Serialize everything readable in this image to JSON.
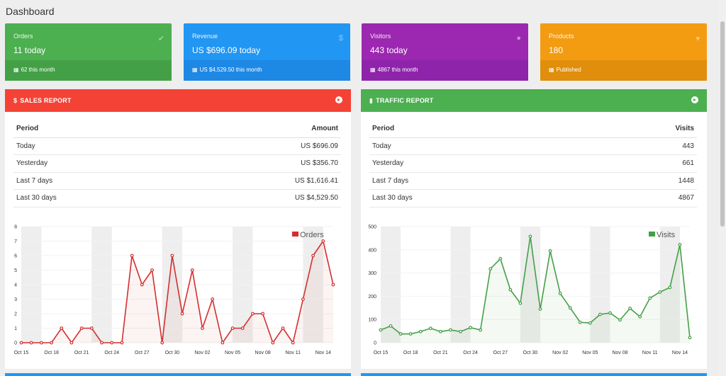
{
  "page": {
    "title": "Dashboard"
  },
  "cards": [
    {
      "key": "orders",
      "label": "Orders",
      "value": "11 today",
      "footer": "62 this month",
      "icon": "check-icon",
      "color": "#4caf50"
    },
    {
      "key": "revenue",
      "label": "Revenue",
      "value": "US $696.09 today",
      "footer": "US $4,529.50 this month",
      "icon": "dollar-icon",
      "color": "#2196f3"
    },
    {
      "key": "visitors",
      "label": "Visitors",
      "value": "443 today",
      "footer": "4867 this month",
      "icon": "user-icon",
      "color": "#9c27b0"
    },
    {
      "key": "products",
      "label": "Products",
      "value": "180",
      "footer": "Published",
      "icon": "cart-icon",
      "color": "#f39c12"
    }
  ],
  "sales": {
    "title": "SALES REPORT",
    "color": "#f44336",
    "columns": [
      "Period",
      "Amount"
    ],
    "rows": [
      [
        "Today",
        "US $696.09"
      ],
      [
        "Yesterday",
        "US $356.70"
      ],
      [
        "Last 7 days",
        "US $1,616.41"
      ],
      [
        "Last 30 days",
        "US $4,529.50"
      ]
    ]
  },
  "traffic": {
    "title": "TRAFFIC REPORT",
    "color": "#4caf50",
    "columns": [
      "Period",
      "Visits"
    ],
    "rows": [
      [
        "Today",
        "443"
      ],
      [
        "Yesterday",
        "661"
      ],
      [
        "Last 7 days",
        "1448"
      ],
      [
        "Last 30 days",
        "4867"
      ]
    ]
  },
  "chart_data": [
    {
      "type": "line",
      "series": [
        {
          "name": "Orders",
          "color": "#d32f2f",
          "values": [
            0,
            0,
            0,
            0,
            1,
            0,
            1,
            1,
            0,
            0,
            0,
            6,
            4,
            5,
            0,
            6,
            2,
            5,
            1,
            3,
            0,
            1,
            1,
            2,
            2,
            0,
            1,
            0,
            3,
            6,
            7,
            4
          ]
        }
      ],
      "x_ticks": [
        "Oct 15",
        "Oct 18",
        "Oct 21",
        "Oct 24",
        "Oct 27",
        "Oct 30",
        "Nov 02",
        "Nov 05",
        "Nov 08",
        "Nov 11",
        "Nov 14"
      ],
      "y_ticks": [
        0,
        1,
        2,
        3,
        4,
        5,
        6,
        7,
        8
      ],
      "ylim": [
        0,
        8
      ],
      "legend": "top-right",
      "shaded_weeks": true
    },
    {
      "type": "line",
      "series": [
        {
          "name": "Visits",
          "color": "#43a047",
          "values": [
            55,
            72,
            38,
            38,
            48,
            62,
            48,
            55,
            48,
            65,
            55,
            318,
            362,
            228,
            170,
            458,
            145,
            395,
            212,
            150,
            88,
            85,
            122,
            128,
            98,
            148,
            112,
            192,
            218,
            238,
            422,
            22
          ]
        }
      ],
      "x_ticks": [
        "Oct 15",
        "Oct 18",
        "Oct 21",
        "Oct 24",
        "Oct 27",
        "Oct 30",
        "Nov 02",
        "Nov 05",
        "Nov 08",
        "Nov 11",
        "Nov 14"
      ],
      "y_ticks": [
        0,
        100,
        200,
        300,
        400,
        500
      ],
      "ylim": [
        0,
        500
      ],
      "legend": "top-right",
      "shaded_weeks": true
    }
  ]
}
